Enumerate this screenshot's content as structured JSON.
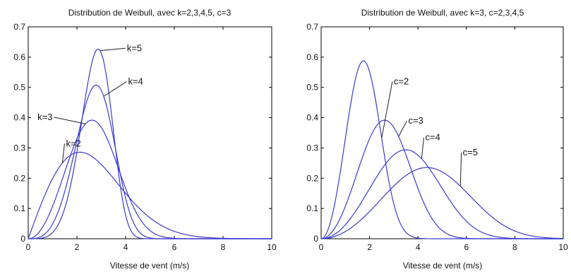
{
  "chart_data": [
    {
      "type": "line",
      "title": "Distribution de Weibull, avec k=2,3,4,5, c=3",
      "xlabel": "Vitesse de vent (m/s)",
      "ylabel": "",
      "xlim": [
        0,
        10
      ],
      "ylim": [
        0,
        0.7
      ],
      "xticks": [
        "0",
        "2",
        "4",
        "6",
        "8",
        "10"
      ],
      "yticks": [
        "0",
        "0.1",
        "0.2",
        "0.3",
        "0.4",
        "0.5",
        "0.6",
        "0.7"
      ],
      "grid": false,
      "line_color": "#3b3bd0",
      "series": [
        {
          "name": "k=2",
          "k": 2,
          "c": 3,
          "label_at": [
            1.55,
            0.305
          ],
          "curve_at": 1.4
        },
        {
          "name": "k=3",
          "k": 3,
          "c": 3,
          "label_at": [
            1.0,
            0.392
          ],
          "curve_at": 2.35
        },
        {
          "name": "k=4",
          "k": 4,
          "c": 3,
          "label_at": [
            4.1,
            0.51
          ],
          "curve_at": 3.1
        },
        {
          "name": "k=5",
          "k": 5,
          "c": 3,
          "label_at": [
            4.05,
            0.62
          ],
          "curve_at": 2.95
        }
      ]
    },
    {
      "type": "line",
      "title": "Distribution de Weibull, avec k=3, c=2,3,4,5",
      "xlabel": "Vitesse de vent (m/s)",
      "ylabel": "",
      "xlim": [
        0,
        10
      ],
      "ylim": [
        0,
        0.7
      ],
      "xticks": [
        "0",
        "2",
        "4",
        "6",
        "8",
        "10"
      ],
      "yticks": [
        "0",
        "0.1",
        "0.2",
        "0.3",
        "0.4",
        "0.5",
        "0.6",
        "0.7"
      ],
      "grid": false,
      "line_color": "#3b3bd0",
      "series": [
        {
          "name": "c=2",
          "k": 3,
          "c": 2,
          "label_at": [
            3.0,
            0.51
          ],
          "curve_at": 2.5
        },
        {
          "name": "c=3",
          "k": 3,
          "c": 3,
          "label_at": [
            3.6,
            0.38
          ],
          "curve_at": 3.2
        },
        {
          "name": "c=4",
          "k": 3,
          "c": 4,
          "label_at": [
            4.3,
            0.325
          ],
          "curve_at": 4.15
        },
        {
          "name": "c=5",
          "k": 3,
          "c": 5,
          "label_at": [
            5.85,
            0.275
          ],
          "curve_at": 5.75
        }
      ]
    }
  ]
}
